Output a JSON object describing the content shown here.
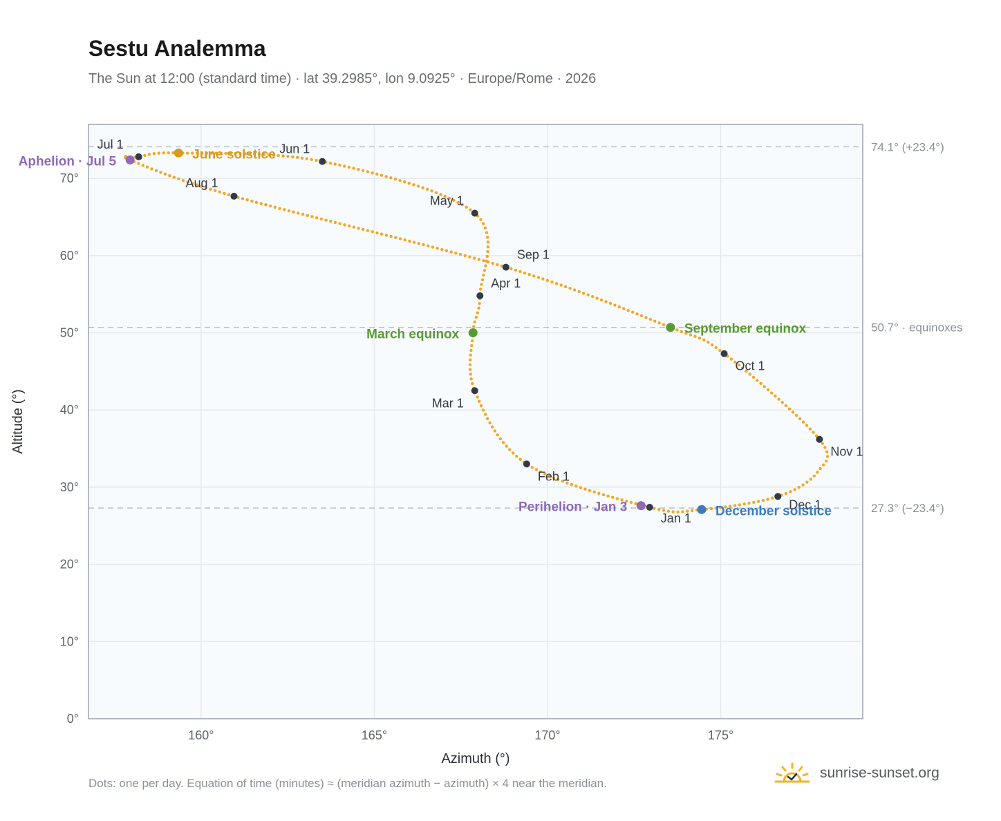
{
  "header": {
    "title": "Sestu Analemma",
    "subtitle": "The Sun at 12:00 (standard time) · lat 39.2985°, lon 9.0925° · Europe/Rome · 2026"
  },
  "footer": {
    "note": "Dots: one per day. Equation of time (minutes) ≈ (meridian azimuth − azimuth) × 4 near the meridian.",
    "brand": "sunrise-sunset.org",
    "brand_icon": "sun-check-icon"
  },
  "chart_data": {
    "type": "scatter",
    "title": "Sestu Analemma",
    "xlabel": "Azimuth (°)",
    "ylabel": "Altitude (°)",
    "xlim": [
      156.75,
      179.1
    ],
    "ylim": [
      0,
      77
    ],
    "xticks": [
      160,
      165,
      170,
      175
    ],
    "yticks": [
      0,
      10,
      20,
      30,
      40,
      50,
      60,
      70
    ],
    "tick_suffix": "°",
    "grid": true,
    "colors": {
      "path": "#f5a623",
      "month": "#333a44",
      "solstice_june": "#d69a1e",
      "solstice_dec": "#3a7bbf",
      "equinox": "#5a9a32",
      "apsis": "#8e6ab8"
    },
    "reference_lines": [
      {
        "y": 74.1,
        "label": "74.1° (+23.4°)"
      },
      {
        "y": 50.7,
        "label": "50.7° · equinoxes"
      },
      {
        "y": 27.3,
        "label": "27.3° (−23.4°)"
      }
    ],
    "month_markers": [
      {
        "label": "Jan 1",
        "az": 172.95,
        "alt": 27.4
      },
      {
        "label": "Feb 1",
        "az": 169.4,
        "alt": 33.0
      },
      {
        "label": "Mar 1",
        "az": 167.9,
        "alt": 42.5
      },
      {
        "label": "Apr 1",
        "az": 168.05,
        "alt": 54.8
      },
      {
        "label": "May 1",
        "az": 167.9,
        "alt": 65.5
      },
      {
        "label": "Jun 1",
        "az": 163.5,
        "alt": 72.2
      },
      {
        "label": "Jul 1",
        "az": 158.2,
        "alt": 72.8
      },
      {
        "label": "Aug 1",
        "az": 160.95,
        "alt": 67.7
      },
      {
        "label": "Sep 1",
        "az": 168.8,
        "alt": 58.5
      },
      {
        "label": "Oct 1",
        "az": 175.1,
        "alt": 47.3
      },
      {
        "label": "Nov 1",
        "az": 177.85,
        "alt": 36.2
      },
      {
        "label": "Dec 1",
        "az": 176.65,
        "alt": 28.8
      }
    ],
    "events": [
      {
        "label": "June solstice",
        "az": 159.35,
        "alt": 73.3,
        "color": "#d69a1e"
      },
      {
        "label": "December solstice",
        "az": 174.45,
        "alt": 27.1,
        "color": "#3a7bbf"
      },
      {
        "label": "March equinox",
        "az": 167.85,
        "alt": 50.0,
        "color": "#5a9a32"
      },
      {
        "label": "September equinox",
        "az": 173.55,
        "alt": 50.7,
        "color": "#5a9a32"
      },
      {
        "label": "Aphelion · Jul 5",
        "az": 157.95,
        "alt": 72.4,
        "color": "#8e6ab8"
      },
      {
        "label": "Perihelion · Jan 3",
        "az": 172.7,
        "alt": 27.6,
        "color": "#8e6ab8"
      }
    ],
    "path_anchors": [
      [
        174.45,
        27.1
      ],
      [
        176.65,
        28.8
      ],
      [
        177.8,
        32.0
      ],
      [
        177.85,
        36.2
      ],
      [
        175.1,
        47.3
      ],
      [
        173.55,
        50.7
      ],
      [
        168.8,
        58.5
      ],
      [
        160.95,
        67.7
      ],
      [
        157.95,
        72.4
      ],
      [
        158.2,
        72.8
      ],
      [
        159.35,
        73.3
      ],
      [
        163.5,
        72.2
      ],
      [
        167.9,
        65.5
      ],
      [
        168.05,
        54.8
      ],
      [
        167.85,
        50.0
      ],
      [
        167.9,
        42.5
      ],
      [
        169.4,
        33.0
      ],
      [
        172.95,
        27.4
      ]
    ]
  }
}
